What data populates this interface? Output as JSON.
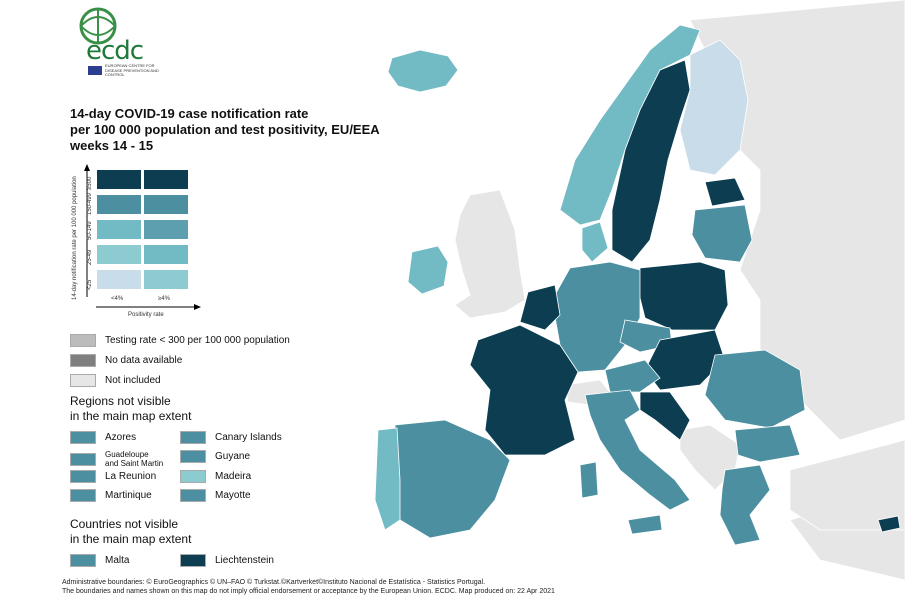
{
  "logo": {
    "text": "ecdc",
    "subtitle": "EUROPEAN CENTRE FOR DISEASE PREVENTION AND CONTROL"
  },
  "title": {
    "line1": "14-day COVID-19 case notification rate",
    "line2": "per 100 000 population and test positivity, EU/EEA",
    "line3": "weeks 14 - 15"
  },
  "matrix": {
    "y_axis_title": "14-day notification rate per 100 000 population",
    "x_axis_title": "Positivity rate",
    "rows": [
      "≥500",
      "150-499",
      "50-149",
      "25-49",
      "<25"
    ],
    "cols": [
      "<4%",
      "≥4%"
    ],
    "colors": [
      [
        "#0c3d51",
        "#0c3d51"
      ],
      [
        "#4b8fa1",
        "#4b8fa1"
      ],
      [
        "#72bac4",
        "#5d9fae"
      ],
      [
        "#8ccbd0",
        "#72bac4"
      ],
      [
        "#c8dde9",
        "#8ccbd0"
      ]
    ]
  },
  "legend": {
    "testing": {
      "label": "Testing rate < 300 per 100 000 population",
      "color": "#bcbcbc"
    },
    "nodata": {
      "label": "No data available",
      "color": "#7f7f7f"
    },
    "notincluded": {
      "label": "Not included",
      "color": "#e6e6e6"
    }
  },
  "regions": {
    "heading_line1": "Regions not visible",
    "heading_line2": "in the main map extent",
    "items": [
      {
        "label": "Azores",
        "color": "#4b8fa1"
      },
      {
        "label": "Canary Islands",
        "color": "#4b8fa1"
      },
      {
        "label_line1": "Guadeloupe",
        "label_line2": "and Saint Martin",
        "color": "#4b8fa1"
      },
      {
        "label": "Guyane",
        "color": "#4b8fa1"
      },
      {
        "label": "La Reunion",
        "color": "#4b8fa1"
      },
      {
        "label": "Madeira",
        "color": "#8ccbd0"
      },
      {
        "label": "Martinique",
        "color": "#4b8fa1"
      },
      {
        "label": "Mayotte",
        "color": "#4b8fa1"
      }
    ]
  },
  "countries": {
    "heading_line1": "Countries not visible",
    "heading_line2": "in the main map extent",
    "items": [
      {
        "label": "Malta",
        "color": "#4b8fa1"
      },
      {
        "label": "Liechtenstein",
        "color": "#0c3d51"
      }
    ]
  },
  "footer": {
    "line1": "Administrative boundaries: © EuroGeographics © UN–FAO © Turkstat.©Kartverket©Instituto Nacional de Estatística - Statistics Portugal.",
    "line2": "The boundaries and names shown on this map do not imply official endorsement or acceptance by the European Union. ECDC. Map produced on: 22 Apr 2021"
  }
}
